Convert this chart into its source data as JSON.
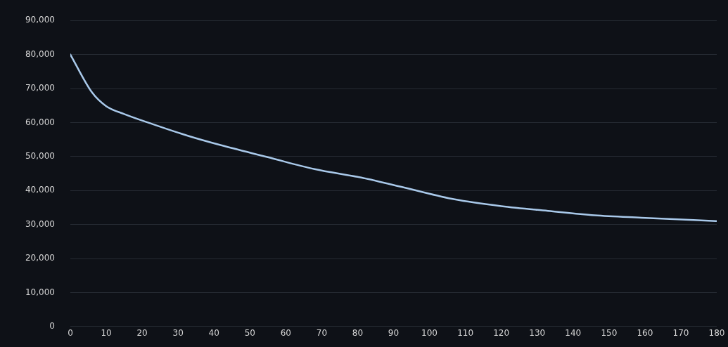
{
  "chart_data": {
    "type": "line",
    "x": [
      0,
      6,
      10,
      15,
      23,
      33,
      42,
      55,
      68,
      81,
      94,
      107,
      120,
      133,
      146,
      159,
      180
    ],
    "values": [
      80000,
      68900,
      64800,
      62500,
      59500,
      56000,
      53300,
      49800,
      46300,
      43800,
      40600,
      37400,
      35400,
      34000,
      32700,
      32000,
      31000
    ],
    "color": "#a9c9ea",
    "xlim": [
      0,
      180
    ],
    "xticks": [
      0,
      10,
      20,
      30,
      40,
      50,
      60,
      70,
      80,
      90,
      100,
      110,
      120,
      130,
      140,
      150,
      160,
      170,
      180
    ],
    "ylim": [
      0,
      90000
    ],
    "yticks": [
      {
        "value": 0,
        "label": "0"
      },
      {
        "value": 10000,
        "label": "10,000"
      },
      {
        "value": 20000,
        "label": "20,000"
      },
      {
        "value": 30000,
        "label": "30,000"
      },
      {
        "value": 40000,
        "label": "40,000"
      },
      {
        "value": 50000,
        "label": "50,000"
      },
      {
        "value": 60000,
        "label": "60,000"
      },
      {
        "value": 70000,
        "label": "70,000"
      },
      {
        "value": 80000,
        "label": "80,000"
      },
      {
        "value": 90000,
        "label": "90,000"
      }
    ],
    "grid": "y",
    "legend": false,
    "marker": "none"
  }
}
